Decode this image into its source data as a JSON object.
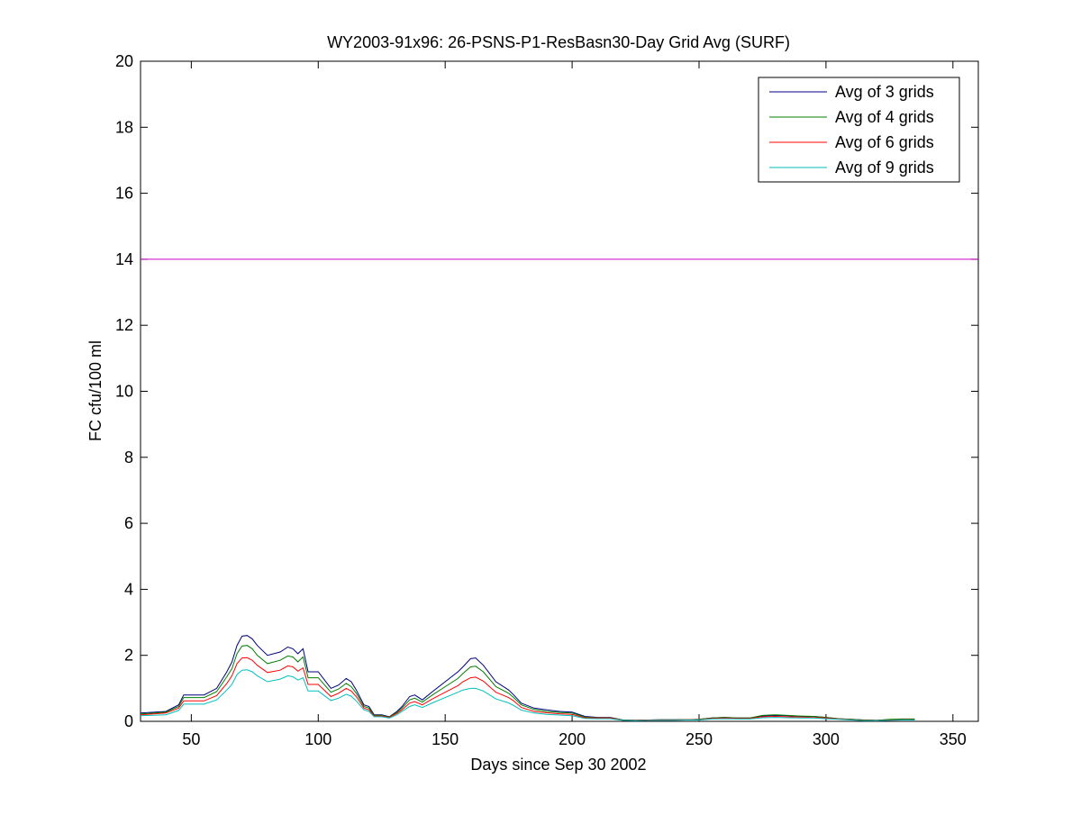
{
  "chart_data": {
    "type": "line",
    "title": "WY2003-91x96: 26-PSNS-P1-ResBasn30-Day Grid Avg (SURF)",
    "xlabel": "Days since Sep 30 2002",
    "ylabel": "FC cfu/100 ml",
    "xlim": [
      30,
      360
    ],
    "ylim": [
      0,
      20
    ],
    "xticks": [
      50,
      100,
      150,
      200,
      250,
      300,
      350
    ],
    "yticks": [
      0,
      2,
      4,
      6,
      8,
      10,
      12,
      14,
      16,
      18,
      20
    ],
    "grid": false,
    "legend_position": "top-right",
    "reference_line": {
      "y": 14,
      "color": "#cc00cc"
    },
    "x": [
      30,
      40,
      45,
      47,
      55,
      60,
      64,
      66,
      68,
      70,
      72,
      74,
      76,
      80,
      85,
      88,
      90,
      92,
      94,
      96,
      100,
      105,
      108,
      111,
      113,
      115,
      118,
      120,
      122,
      125,
      128,
      131,
      133,
      136,
      138,
      141,
      145,
      150,
      155,
      157,
      160,
      162,
      165,
      170,
      175,
      177,
      180,
      185,
      190,
      195,
      200,
      205,
      210,
      215,
      220,
      225,
      230,
      235,
      240,
      245,
      250,
      255,
      260,
      265,
      270,
      275,
      280,
      285,
      290,
      295,
      300,
      305,
      310,
      315,
      320,
      325,
      330,
      335
    ],
    "series": [
      {
        "name": "Avg of 3 grids",
        "color": "#00007f",
        "values": [
          0.25,
          0.3,
          0.5,
          0.8,
          0.8,
          1.0,
          1.5,
          1.8,
          2.3,
          2.58,
          2.6,
          2.5,
          2.3,
          2.0,
          2.1,
          2.25,
          2.2,
          2.05,
          2.2,
          1.5,
          1.5,
          1.0,
          1.1,
          1.3,
          1.2,
          0.95,
          0.5,
          0.45,
          0.2,
          0.2,
          0.14,
          0.3,
          0.45,
          0.75,
          0.8,
          0.65,
          0.9,
          1.2,
          1.5,
          1.65,
          1.9,
          1.92,
          1.7,
          1.2,
          0.95,
          0.8,
          0.55,
          0.4,
          0.35,
          0.3,
          0.28,
          0.15,
          0.12,
          0.12,
          0.04,
          0.03,
          0.04,
          0.05,
          0.05,
          0.05,
          0.06,
          0.1,
          0.12,
          0.1,
          0.1,
          0.16,
          0.18,
          0.17,
          0.15,
          0.15,
          0.12,
          0.08,
          0.06,
          0.04,
          0.03,
          0.05,
          0.06,
          0.06
        ]
      },
      {
        "name": "Avg of 4 grids",
        "color": "#007f00",
        "values": [
          0.22,
          0.28,
          0.45,
          0.72,
          0.72,
          0.9,
          1.35,
          1.6,
          2.05,
          2.28,
          2.3,
          2.2,
          2.0,
          1.75,
          1.85,
          1.98,
          1.95,
          1.8,
          1.95,
          1.32,
          1.32,
          0.88,
          0.98,
          1.15,
          1.05,
          0.85,
          0.45,
          0.4,
          0.18,
          0.18,
          0.13,
          0.27,
          0.4,
          0.65,
          0.7,
          0.58,
          0.8,
          1.05,
          1.3,
          1.45,
          1.65,
          1.67,
          1.5,
          1.05,
          0.85,
          0.72,
          0.5,
          0.36,
          0.3,
          0.27,
          0.25,
          0.13,
          0.11,
          0.11,
          0.04,
          0.03,
          0.04,
          0.05,
          0.05,
          0.05,
          0.06,
          0.1,
          0.12,
          0.1,
          0.1,
          0.18,
          0.2,
          0.18,
          0.16,
          0.15,
          0.12,
          0.08,
          0.06,
          0.04,
          0.03,
          0.06,
          0.07,
          0.07
        ]
      },
      {
        "name": "Avg of 6 grids",
        "color": "#ff0000",
        "values": [
          0.2,
          0.25,
          0.4,
          0.62,
          0.62,
          0.78,
          1.15,
          1.38,
          1.75,
          1.92,
          1.93,
          1.85,
          1.7,
          1.48,
          1.55,
          1.68,
          1.65,
          1.52,
          1.62,
          1.12,
          1.12,
          0.75,
          0.85,
          1.0,
          0.92,
          0.75,
          0.4,
          0.35,
          0.16,
          0.16,
          0.12,
          0.24,
          0.35,
          0.55,
          0.6,
          0.5,
          0.68,
          0.88,
          1.08,
          1.2,
          1.32,
          1.34,
          1.22,
          0.88,
          0.72,
          0.62,
          0.42,
          0.3,
          0.26,
          0.23,
          0.21,
          0.11,
          0.1,
          0.1,
          0.03,
          0.03,
          0.04,
          0.04,
          0.04,
          0.05,
          0.05,
          0.09,
          0.1,
          0.09,
          0.09,
          0.14,
          0.15,
          0.14,
          0.13,
          0.12,
          0.1,
          0.07,
          0.05,
          0.03,
          0.02,
          0.04,
          0.05,
          0.05
        ]
      },
      {
        "name": "Avg of 9 grids",
        "color": "#00bfbf",
        "values": [
          0.17,
          0.2,
          0.33,
          0.52,
          0.52,
          0.65,
          0.95,
          1.12,
          1.42,
          1.55,
          1.56,
          1.5,
          1.38,
          1.2,
          1.28,
          1.38,
          1.35,
          1.25,
          1.32,
          0.92,
          0.92,
          0.63,
          0.7,
          0.82,
          0.76,
          0.62,
          0.35,
          0.3,
          0.14,
          0.14,
          0.1,
          0.2,
          0.3,
          0.45,
          0.5,
          0.42,
          0.56,
          0.72,
          0.88,
          0.95,
          1.0,
          1.0,
          0.92,
          0.68,
          0.56,
          0.48,
          0.34,
          0.25,
          0.21,
          0.19,
          0.17,
          0.09,
          0.08,
          0.08,
          0.03,
          0.02,
          0.03,
          0.03,
          0.03,
          0.04,
          0.04,
          0.07,
          0.08,
          0.07,
          0.07,
          0.11,
          0.12,
          0.11,
          0.1,
          0.1,
          0.08,
          0.06,
          0.04,
          0.02,
          0.02,
          0.03,
          0.04,
          0.04
        ]
      }
    ]
  }
}
